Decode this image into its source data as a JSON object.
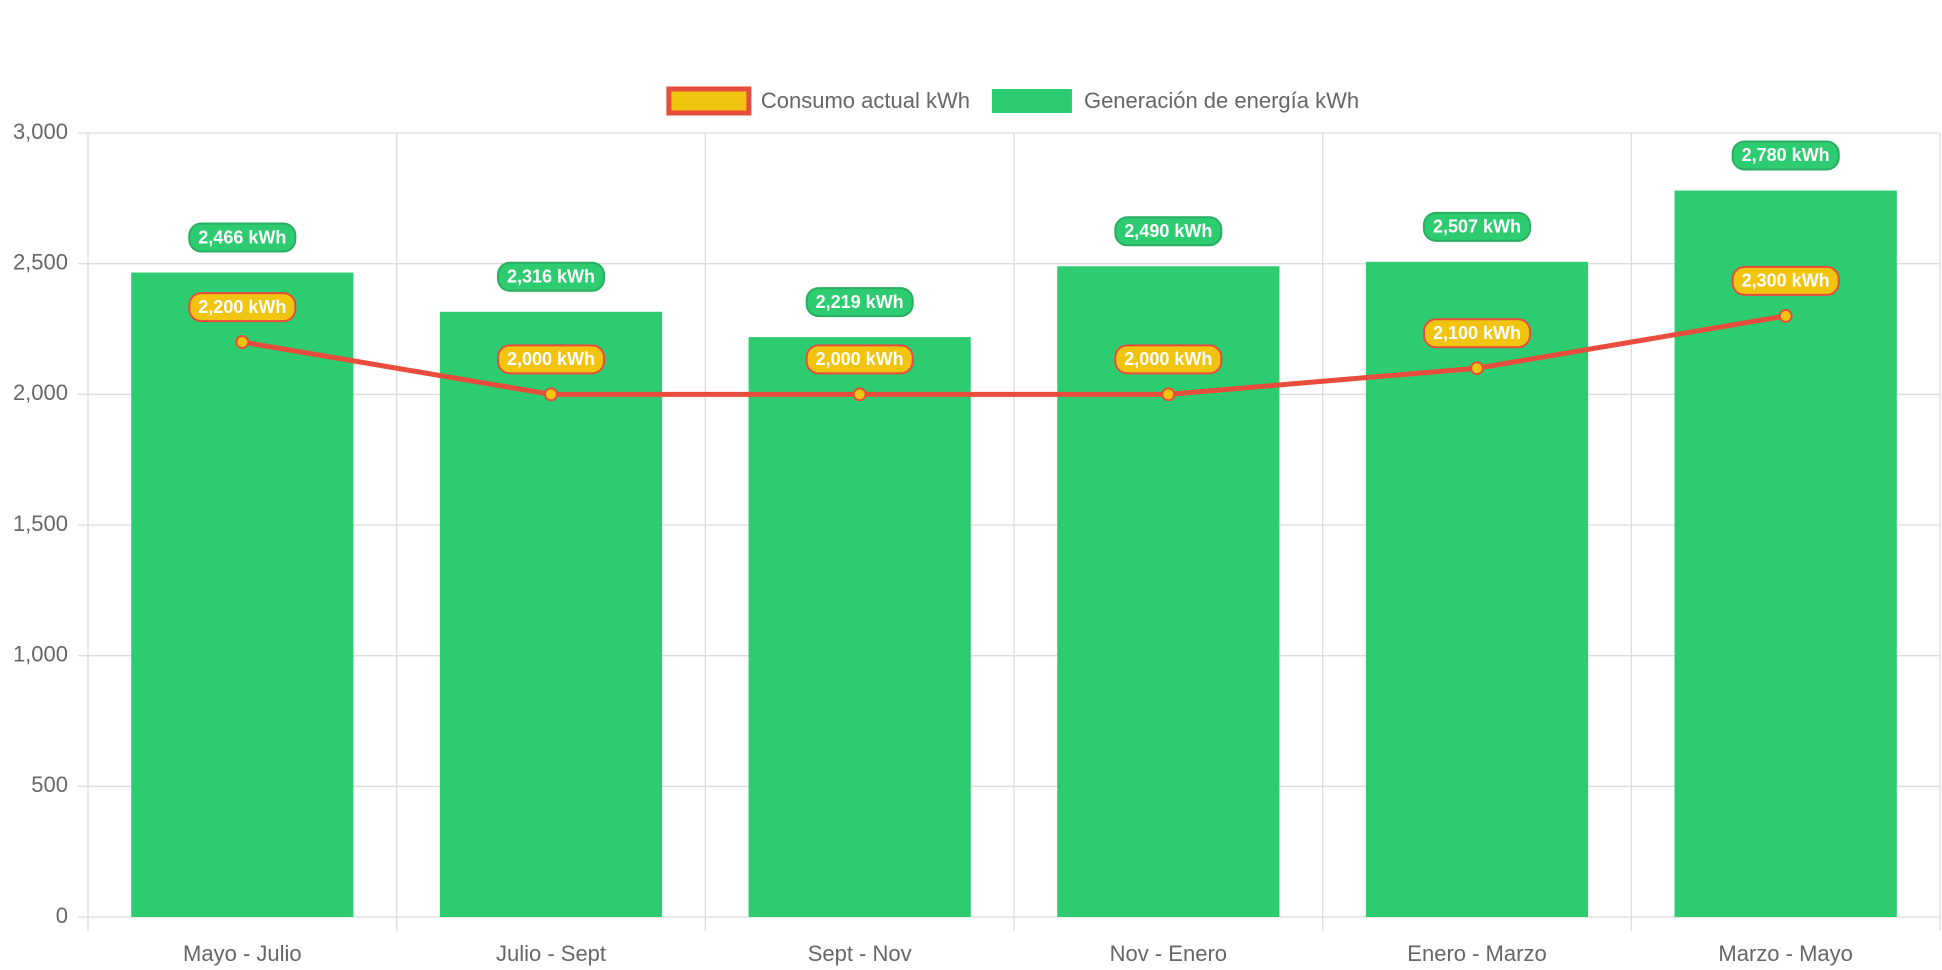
{
  "chart_data": {
    "type": "bar",
    "categories": [
      "Mayo - Julio",
      "Julio - Sept",
      "Sept - Nov",
      "Nov - Enero",
      "Enero - Marzo",
      "Marzo - Mayo"
    ],
    "series": [
      {
        "name": "Consumo actual kWh",
        "type": "line",
        "color": "#e74c3c",
        "point_color": "#f1c40f",
        "values": [
          2200,
          2000,
          2000,
          2000,
          2100,
          2300
        ],
        "value_labels": [
          "2,200 kWh",
          "2,000 kWh",
          "2,000 kWh",
          "2,000 kWh",
          "2,100 kWh",
          "2,300 kWh"
        ]
      },
      {
        "name": "Generación de energía kWh",
        "type": "bar",
        "color": "#2ecc71",
        "values": [
          2466,
          2316,
          2219,
          2490,
          2507,
          2780
        ],
        "value_labels": [
          "2,466 kWh",
          "2,316 kWh",
          "2,219 kWh",
          "2,490 kWh",
          "2,507 kWh",
          "2,780 kWh"
        ]
      }
    ],
    "ylim": [
      0,
      3000
    ],
    "yticks": [
      0,
      500,
      {
        "value": 1000,
        "label": "1,000"
      },
      {
        "value": 1500,
        "label": "1,500"
      },
      {
        "value": 2000,
        "label": "2,000"
      },
      {
        "value": 2500,
        "label": "2,500"
      },
      {
        "value": 3000,
        "label": "3,000"
      }
    ],
    "grid": true,
    "legend": "top"
  }
}
